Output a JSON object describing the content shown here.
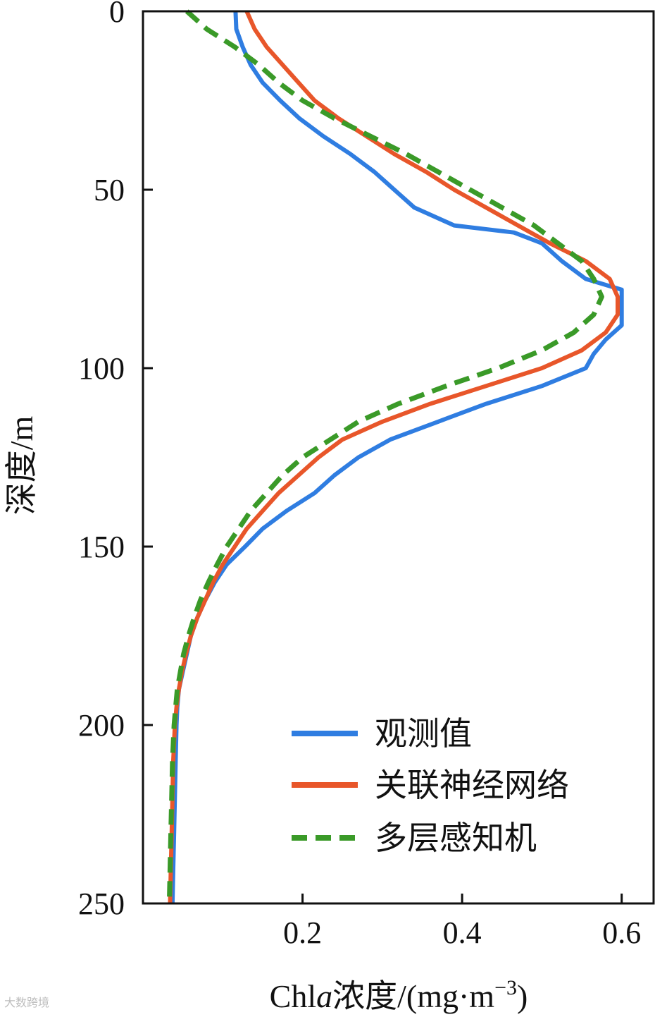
{
  "chart_data": {
    "type": "line",
    "orientation": "depth-profile",
    "x_axis": {
      "label": "Chl",
      "label_italic": "a",
      "label_rest": "浓度/(mg·m",
      "label_sup": "−3",
      "label_close": ")",
      "range": [
        0,
        0.64
      ],
      "ticks": [
        0.2,
        0.4,
        0.6
      ],
      "tick_labels": [
        "0.2",
        "0.4",
        "0.6"
      ]
    },
    "y_axis": {
      "label": "深度/m",
      "range": [
        0,
        250
      ],
      "inverted": true,
      "ticks": [
        0,
        50,
        100,
        150,
        200,
        250
      ],
      "tick_labels": [
        "0",
        "50",
        "100",
        "150",
        "200",
        "250"
      ]
    },
    "grid": false,
    "legend_position": "bottom-right",
    "series": [
      {
        "name": "观测值",
        "color": "#2f7de1",
        "style": "solid",
        "points": [
          [
            0.116,
            0
          ],
          [
            0.117,
            5
          ],
          [
            0.125,
            10
          ],
          [
            0.135,
            15
          ],
          [
            0.15,
            20
          ],
          [
            0.172,
            25
          ],
          [
            0.196,
            30
          ],
          [
            0.226,
            35
          ],
          [
            0.26,
            40
          ],
          [
            0.29,
            45
          ],
          [
            0.315,
            50
          ],
          [
            0.34,
            55
          ],
          [
            0.39,
            60
          ],
          [
            0.465,
            62
          ],
          [
            0.5,
            65
          ],
          [
            0.525,
            70
          ],
          [
            0.555,
            75
          ],
          [
            0.6,
            78
          ],
          [
            0.6,
            82
          ],
          [
            0.6,
            86
          ],
          [
            0.6,
            88
          ],
          [
            0.58,
            92
          ],
          [
            0.565,
            96
          ],
          [
            0.555,
            100
          ],
          [
            0.5,
            105
          ],
          [
            0.43,
            110
          ],
          [
            0.37,
            115
          ],
          [
            0.31,
            120
          ],
          [
            0.27,
            125
          ],
          [
            0.24,
            130
          ],
          [
            0.215,
            135
          ],
          [
            0.18,
            140
          ],
          [
            0.15,
            145
          ],
          [
            0.128,
            150
          ],
          [
            0.105,
            155
          ],
          [
            0.09,
            160
          ],
          [
            0.078,
            165
          ],
          [
            0.068,
            170
          ],
          [
            0.06,
            175
          ],
          [
            0.055,
            180
          ],
          [
            0.05,
            185
          ],
          [
            0.045,
            190
          ],
          [
            0.043,
            195
          ],
          [
            0.042,
            200
          ],
          [
            0.041,
            210
          ],
          [
            0.04,
            220
          ],
          [
            0.039,
            230
          ],
          [
            0.038,
            240
          ],
          [
            0.037,
            250
          ]
        ]
      },
      {
        "name": "关联神经网络",
        "color": "#e8562a",
        "style": "solid",
        "points": [
          [
            0.13,
            0
          ],
          [
            0.14,
            5
          ],
          [
            0.155,
            10
          ],
          [
            0.175,
            15
          ],
          [
            0.195,
            20
          ],
          [
            0.215,
            25
          ],
          [
            0.245,
            30
          ],
          [
            0.28,
            35
          ],
          [
            0.315,
            40
          ],
          [
            0.355,
            45
          ],
          [
            0.39,
            50
          ],
          [
            0.43,
            55
          ],
          [
            0.47,
            60
          ],
          [
            0.51,
            65
          ],
          [
            0.555,
            70
          ],
          [
            0.585,
            75
          ],
          [
            0.595,
            80
          ],
          [
            0.595,
            85
          ],
          [
            0.58,
            90
          ],
          [
            0.55,
            95
          ],
          [
            0.5,
            100
          ],
          [
            0.43,
            105
          ],
          [
            0.36,
            110
          ],
          [
            0.3,
            115
          ],
          [
            0.25,
            120
          ],
          [
            0.22,
            125
          ],
          [
            0.195,
            130
          ],
          [
            0.17,
            135
          ],
          [
            0.15,
            140
          ],
          [
            0.13,
            145
          ],
          [
            0.115,
            150
          ],
          [
            0.1,
            155
          ],
          [
            0.088,
            160
          ],
          [
            0.078,
            165
          ],
          [
            0.068,
            170
          ],
          [
            0.06,
            175
          ],
          [
            0.054,
            180
          ],
          [
            0.049,
            185
          ],
          [
            0.045,
            190
          ],
          [
            0.042,
            195
          ],
          [
            0.04,
            200
          ],
          [
            0.038,
            210
          ],
          [
            0.037,
            220
          ],
          [
            0.036,
            230
          ],
          [
            0.035,
            240
          ],
          [
            0.034,
            250
          ]
        ]
      },
      {
        "name": "多层感知机",
        "color": "#3a9a28",
        "style": "dashed",
        "points": [
          [
            0.055,
            0
          ],
          [
            0.08,
            5
          ],
          [
            0.115,
            10
          ],
          [
            0.145,
            15
          ],
          [
            0.17,
            20
          ],
          [
            0.2,
            25
          ],
          [
            0.24,
            30
          ],
          [
            0.285,
            35
          ],
          [
            0.33,
            40
          ],
          [
            0.37,
            45
          ],
          [
            0.41,
            50
          ],
          [
            0.45,
            55
          ],
          [
            0.49,
            60
          ],
          [
            0.52,
            65
          ],
          [
            0.55,
            70
          ],
          [
            0.565,
            75
          ],
          [
            0.575,
            80
          ],
          [
            0.565,
            85
          ],
          [
            0.54,
            90
          ],
          [
            0.5,
            95
          ],
          [
            0.445,
            100
          ],
          [
            0.38,
            105
          ],
          [
            0.32,
            110
          ],
          [
            0.27,
            115
          ],
          [
            0.235,
            120
          ],
          [
            0.2,
            125
          ],
          [
            0.175,
            130
          ],
          [
            0.155,
            135
          ],
          [
            0.135,
            140
          ],
          [
            0.12,
            145
          ],
          [
            0.105,
            150
          ],
          [
            0.093,
            155
          ],
          [
            0.082,
            160
          ],
          [
            0.072,
            165
          ],
          [
            0.064,
            170
          ],
          [
            0.057,
            175
          ],
          [
            0.051,
            180
          ],
          [
            0.047,
            185
          ],
          [
            0.043,
            190
          ],
          [
            0.041,
            195
          ],
          [
            0.039,
            200
          ],
          [
            0.037,
            210
          ],
          [
            0.036,
            220
          ],
          [
            0.035,
            230
          ],
          [
            0.034,
            240
          ],
          [
            0.033,
            250
          ]
        ]
      }
    ]
  },
  "watermark": "大数跨境"
}
